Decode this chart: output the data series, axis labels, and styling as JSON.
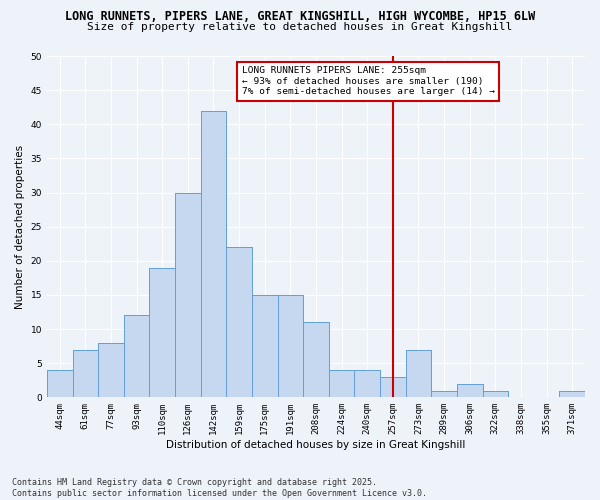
{
  "title_line1": "LONG RUNNETS, PIPERS LANE, GREAT KINGSHILL, HIGH WYCOMBE, HP15 6LW",
  "title_line2": "Size of property relative to detached houses in Great Kingshill",
  "xlabel": "Distribution of detached houses by size in Great Kingshill",
  "ylabel": "Number of detached properties",
  "bar_color": "#c5d8f0",
  "bar_edge_color": "#5b9bd5",
  "categories": [
    "44sqm",
    "61sqm",
    "77sqm",
    "93sqm",
    "110sqm",
    "126sqm",
    "142sqm",
    "159sqm",
    "175sqm",
    "191sqm",
    "208sqm",
    "224sqm",
    "240sqm",
    "257sqm",
    "273sqm",
    "289sqm",
    "306sqm",
    "322sqm",
    "338sqm",
    "355sqm",
    "371sqm"
  ],
  "values": [
    4,
    7,
    8,
    12,
    19,
    30,
    42,
    22,
    15,
    15,
    11,
    4,
    4,
    3,
    7,
    1,
    2,
    1,
    0,
    0,
    1
  ],
  "ylim": [
    0,
    50
  ],
  "yticks": [
    0,
    5,
    10,
    15,
    20,
    25,
    30,
    35,
    40,
    45,
    50
  ],
  "vline_color": "#cc0000",
  "annotation_text": "LONG RUNNETS PIPERS LANE: 255sqm\n← 93% of detached houses are smaller (190)\n7% of semi-detached houses are larger (14) →",
  "annotation_box_color": "#ffffff",
  "annotation_box_edge": "#cc0000",
  "background_color": "#eef2f9",
  "grid_color": "#ffffff",
  "footer_line1": "Contains HM Land Registry data © Crown copyright and database right 2025.",
  "footer_line2": "Contains public sector information licensed under the Open Government Licence v3.0.",
  "title_fontsize": 8.5,
  "subtitle_fontsize": 8,
  "axis_label_fontsize": 7.5,
  "tick_fontsize": 6.5,
  "annotation_fontsize": 6.8,
  "footer_fontsize": 6
}
